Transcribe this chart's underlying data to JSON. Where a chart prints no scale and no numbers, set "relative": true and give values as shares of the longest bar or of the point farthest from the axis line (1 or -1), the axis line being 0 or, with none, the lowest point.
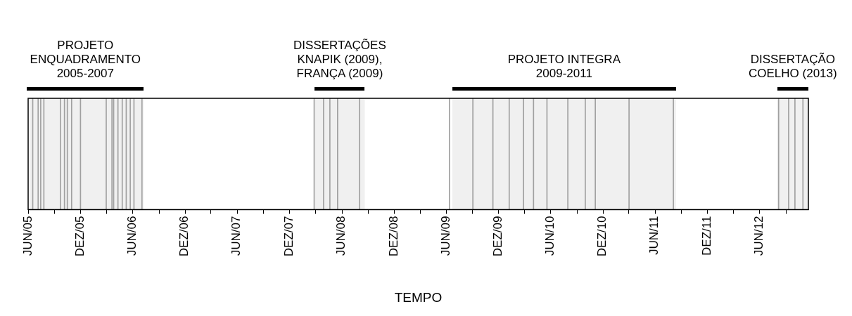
{
  "chart_data": {
    "type": "bar",
    "relative": true,
    "xlabel": "TEMPO",
    "color": "#a0a0a0",
    "x": [
      "2005-06-17",
      "2005-07-06",
      "2005-07-15",
      "2005-07-26",
      "2005-09-22",
      "2005-10-06",
      "2005-10-16",
      "2005-10-31",
      "2005-12-01",
      "2006-03-01",
      "2006-03-21",
      "2006-03-27",
      "2006-04-11",
      "2006-04-26",
      "2006-05-10",
      "2006-05-24",
      "2006-06-06",
      "2006-07-04",
      "2008-02-26",
      "2008-03-30",
      "2008-04-21",
      "2008-05-18",
      "2008-08-03",
      "2009-06-13",
      "2009-09-03",
      "2009-11-12",
      "2010-01-08",
      "2010-02-27",
      "2010-04-03",
      "2010-05-20",
      "2010-08-01",
      "2010-10-01",
      "2010-11-05",
      "2011-03-03",
      "2011-08-05",
      "2012-08-07",
      "2012-09-11",
      "2012-10-03",
      "2012-10-31"
    ],
    "values": [
      1,
      1,
      1,
      1,
      1,
      1,
      1,
      1,
      1,
      1,
      1,
      1,
      1,
      1,
      1,
      1,
      1,
      1,
      1,
      1,
      1,
      1,
      1,
      1,
      1,
      1,
      1,
      1,
      1,
      1,
      1,
      1,
      1,
      1,
      1,
      1,
      1,
      1,
      1
    ],
    "xlim": [
      "2005-06-01",
      "2012-11-19"
    ],
    "xticks": [
      {
        "value": "2005-06",
        "label": "JUN/05"
      },
      {
        "value": "2005-09",
        "label": null
      },
      {
        "value": "2005-12",
        "label": "DEZ/05"
      },
      {
        "value": "2006-03",
        "label": null
      },
      {
        "value": "2006-06",
        "label": "JUN/06"
      },
      {
        "value": "2006-09",
        "label": null
      },
      {
        "value": "2006-12",
        "label": "DEZ/06"
      },
      {
        "value": "2007-03",
        "label": null
      },
      {
        "value": "2007-06",
        "label": "JUN/07"
      },
      {
        "value": "2007-09",
        "label": null
      },
      {
        "value": "2007-12",
        "label": "DEZ/07"
      },
      {
        "value": "2008-03",
        "label": null
      },
      {
        "value": "2008-06",
        "label": "JUN/08"
      },
      {
        "value": "2008-09",
        "label": null
      },
      {
        "value": "2008-12",
        "label": "DEZ/08"
      },
      {
        "value": "2009-03",
        "label": null
      },
      {
        "value": "2009-06",
        "label": "JUN/09"
      },
      {
        "value": "2009-09",
        "label": null
      },
      {
        "value": "2009-12",
        "label": "DEZ/09"
      },
      {
        "value": "2010-03",
        "label": null
      },
      {
        "value": "2010-06",
        "label": "JUN/10"
      },
      {
        "value": "2010-09",
        "label": null
      },
      {
        "value": "2010-12",
        "label": "DEZ/10"
      },
      {
        "value": "2011-03",
        "label": null
      },
      {
        "value": "2011-06",
        "label": "JUN/11"
      },
      {
        "value": "2011-09",
        "label": null
      },
      {
        "value": "2011-12",
        "label": "DEZ/11"
      },
      {
        "value": "2012-03",
        "label": null
      },
      {
        "value": "2012-06",
        "label": "JUN/12"
      },
      {
        "value": "2012-09",
        "label": null
      }
    ],
    "bands": [
      {
        "axis": "x",
        "from": "2005-05-28",
        "to": "2006-07-10",
        "label": "PROJETO\nENQUADRAMENTO\n2005-2007",
        "color": "#000000"
      },
      {
        "axis": "x",
        "from": "2008-02-28",
        "to": "2008-08-21",
        "label": "DISSERTAÇÕES\nKNAPIK (2009),\nFRANÇA (2009)",
        "color": "#000000"
      },
      {
        "axis": "x",
        "from": "2009-06-23",
        "to": "2011-08-14",
        "label": "PROJETO INTEGRA\n2009-2011",
        "color": "#000000"
      },
      {
        "axis": "x",
        "from": "2012-08-02",
        "to": "2012-11-19",
        "label": "DISSERTAÇÃO\nCOELHO (2013)",
        "color": "#000000"
      }
    ]
  }
}
